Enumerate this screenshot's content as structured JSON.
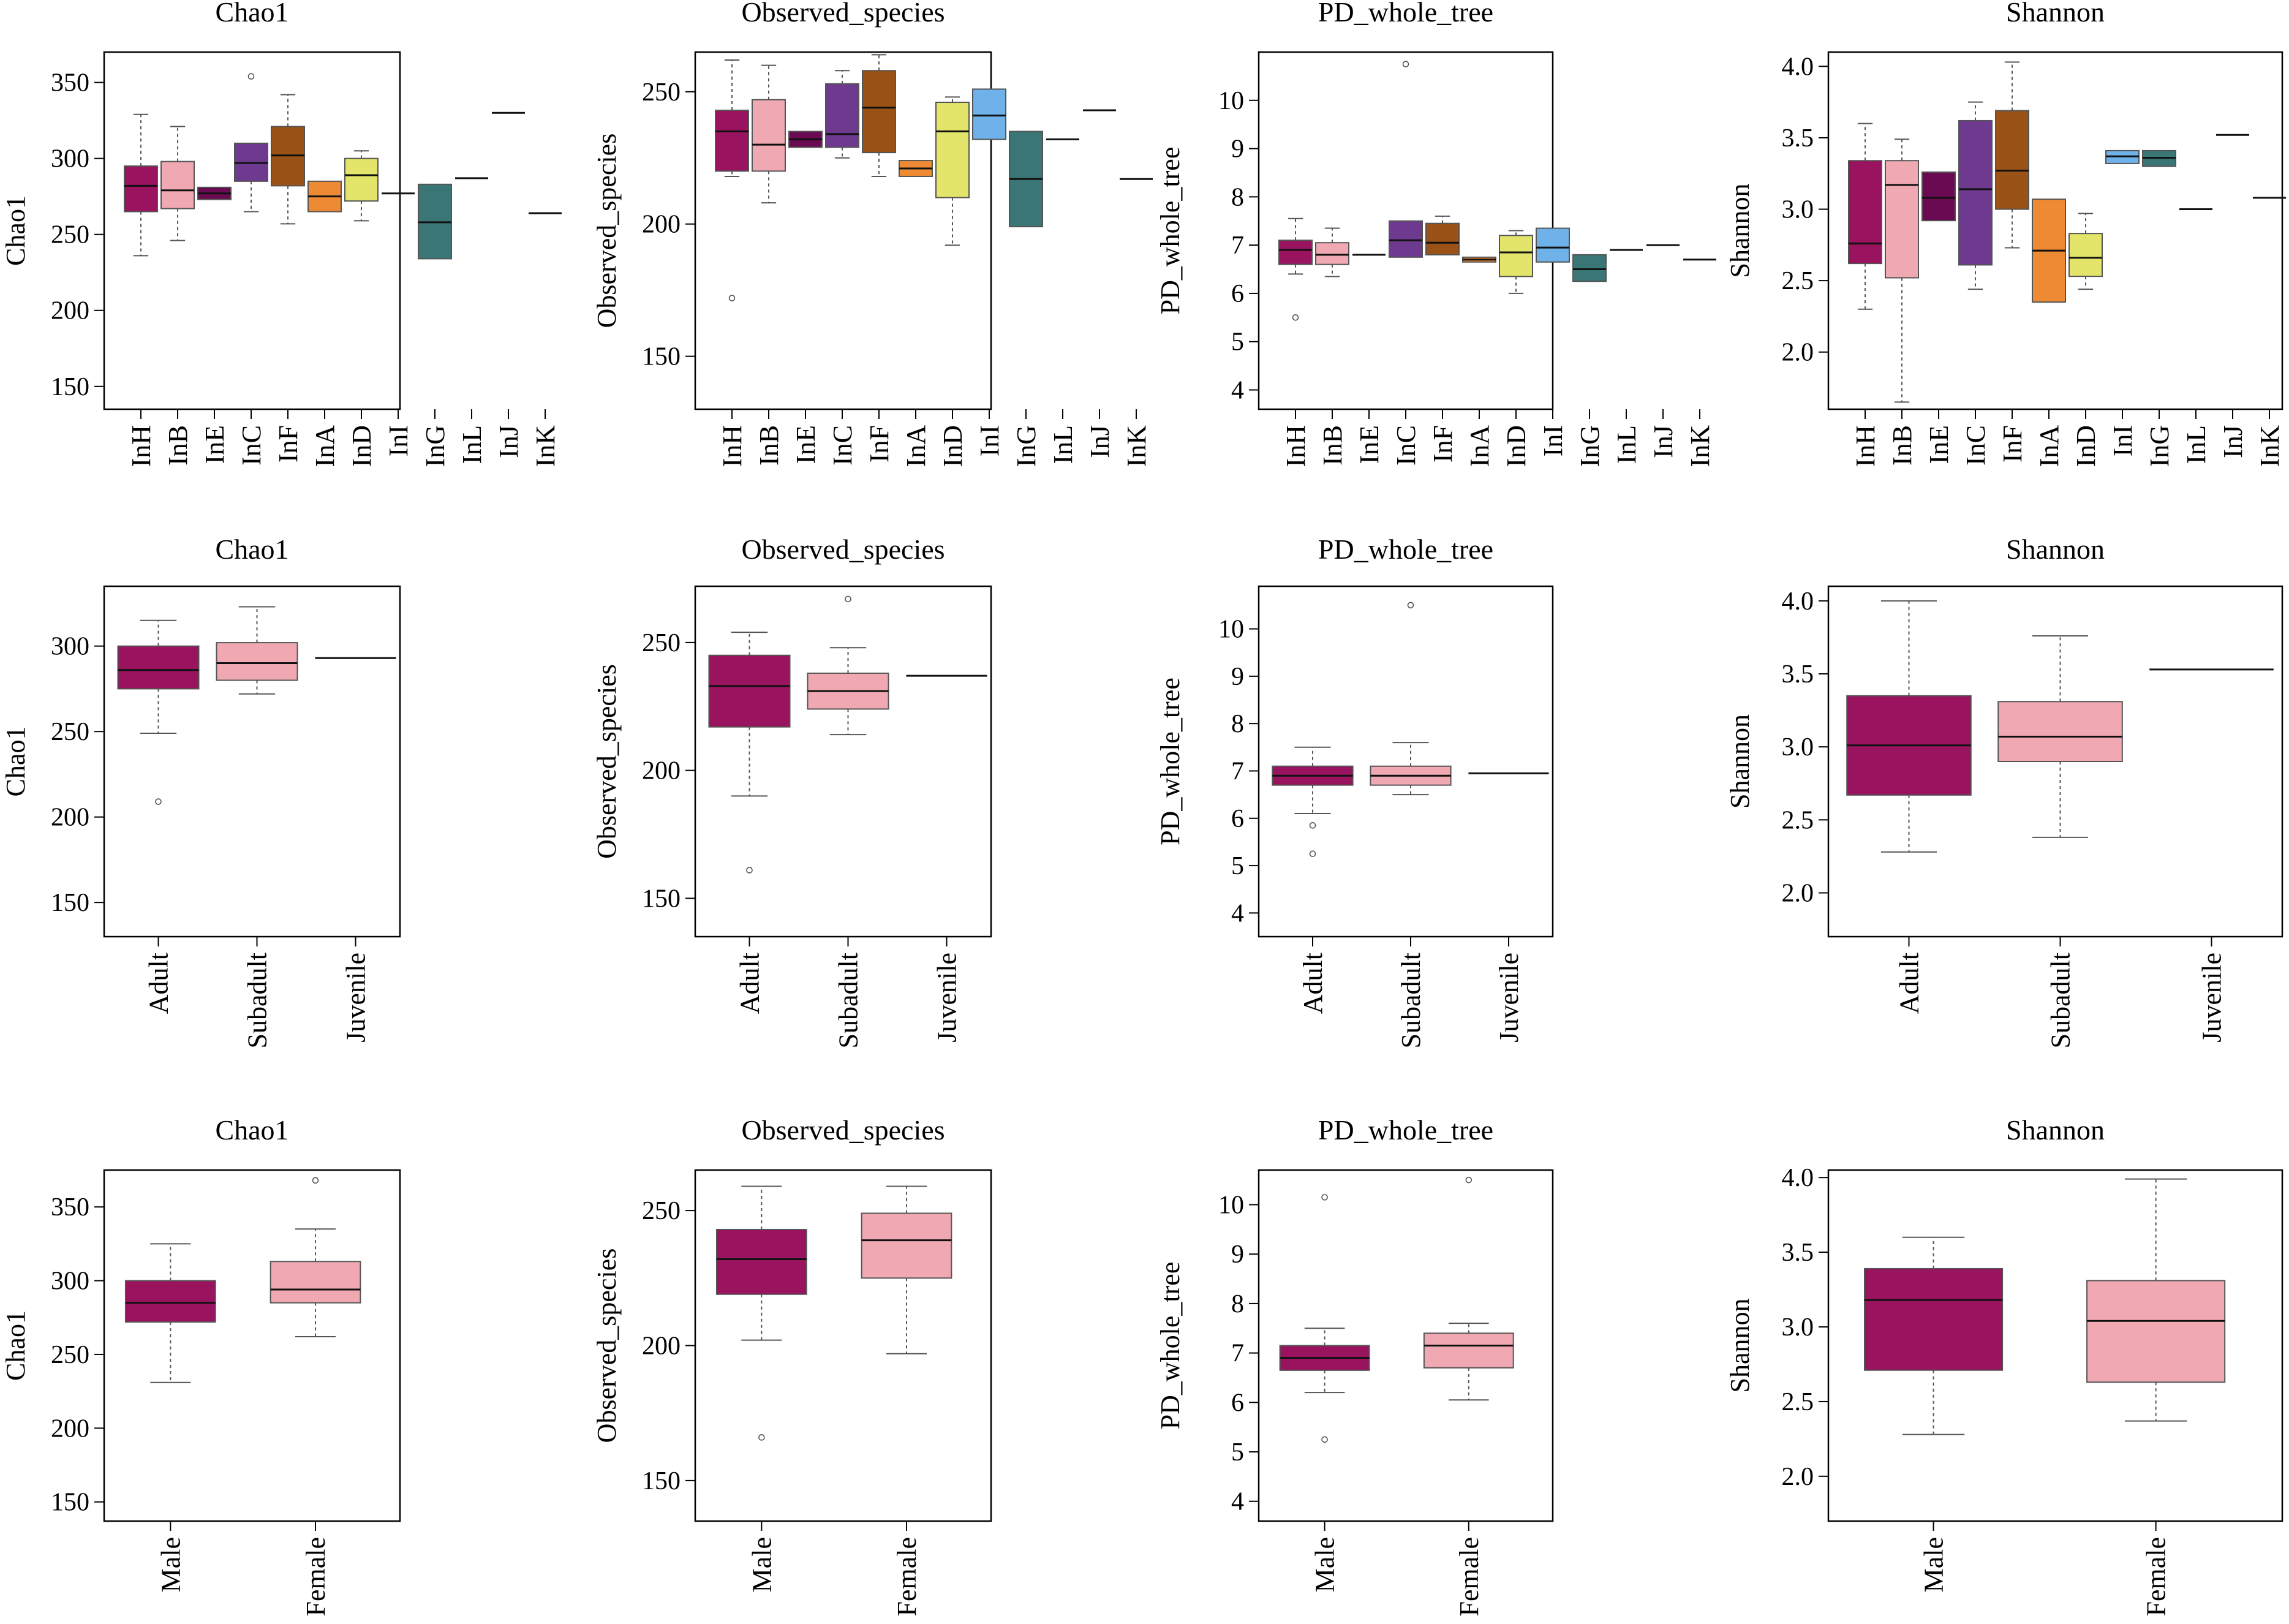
{
  "colors": {
    "InH": "#99135f",
    "InB": "#f0a8b2",
    "InE": "#6a0a52",
    "InC": "#6e3a8f",
    "InF": "#9a5216",
    "InA": "#ee8a33",
    "InD": "#e3e56a",
    "InI": "#6fb2ea",
    "InG": "#3a7676",
    "InL": "#3a7676",
    "InJ": "#3a7676",
    "InK": "#3a7676",
    "Adult": "#99135f",
    "Subadult": "#f0a8b2",
    "Juvenile": "#99135f",
    "Male": "#99135f",
    "Female": "#f0a8b2"
  },
  "chart_data": [
    {
      "type": "box",
      "title": "Chao1",
      "ylabel": "Chao1",
      "ylim": [
        135,
        370
      ],
      "yticks": [
        150,
        200,
        250,
        300,
        350
      ],
      "categories": [
        "InH",
        "InB",
        "InE",
        "InC",
        "InF",
        "InA",
        "InD",
        "InI",
        "InG",
        "InL",
        "InJ",
        "InK"
      ],
      "boxes": [
        {
          "min": 236,
          "q1": 265,
          "median": 282,
          "q3": 295,
          "max": 329,
          "outliers": []
        },
        {
          "min": 246,
          "q1": 267,
          "median": 279,
          "q3": 298,
          "max": 321,
          "outliers": []
        },
        {
          "min": 273,
          "q1": 273,
          "median": 277,
          "q3": 281,
          "max": 281,
          "outliers": []
        },
        {
          "min": 265,
          "q1": 285,
          "median": 297,
          "q3": 310,
          "max": 310,
          "outliers": [
            354
          ]
        },
        {
          "min": 257,
          "q1": 282,
          "median": 302,
          "q3": 321,
          "max": 342,
          "outliers": []
        },
        {
          "min": 265,
          "q1": 265,
          "median": 275,
          "q3": 285,
          "max": 285,
          "outliers": []
        },
        {
          "min": 259,
          "q1": 272,
          "median": 289,
          "q3": 300,
          "max": 305,
          "outliers": []
        },
        {
          "min": 277,
          "q1": 277,
          "median": 277,
          "q3": 277,
          "max": 277,
          "outliers": []
        },
        {
          "min": 234,
          "q1": 234,
          "median": 258,
          "q3": 283,
          "max": 283,
          "outliers": []
        },
        {
          "min": 287,
          "q1": 287,
          "median": 287,
          "q3": 287,
          "max": 287,
          "outliers": []
        },
        {
          "min": 330,
          "q1": 330,
          "median": 330,
          "q3": 330,
          "max": 330,
          "outliers": []
        },
        {
          "min": 264,
          "q1": 264,
          "median": 264,
          "q3": 264,
          "max": 264,
          "outliers": []
        }
      ]
    },
    {
      "type": "box",
      "title": "Observed_species",
      "ylabel": "Observed_species",
      "ylim": [
        130,
        265
      ],
      "yticks": [
        150,
        200,
        250
      ],
      "categories": [
        "InH",
        "InB",
        "InE",
        "InC",
        "InF",
        "InA",
        "InD",
        "InI",
        "InG",
        "InL",
        "InJ",
        "InK"
      ],
      "boxes": [
        {
          "min": 218,
          "q1": 220,
          "median": 235,
          "q3": 243,
          "max": 262,
          "outliers": [
            172
          ]
        },
        {
          "min": 208,
          "q1": 220,
          "median": 230,
          "q3": 247,
          "max": 260,
          "outliers": []
        },
        {
          "min": 229,
          "q1": 229,
          "median": 232,
          "q3": 235,
          "max": 235,
          "outliers": []
        },
        {
          "min": 225,
          "q1": 229,
          "median": 234,
          "q3": 253,
          "max": 258,
          "outliers": []
        },
        {
          "min": 218,
          "q1": 227,
          "median": 244,
          "q3": 258,
          "max": 264,
          "outliers": []
        },
        {
          "min": 218,
          "q1": 218,
          "median": 221,
          "q3": 224,
          "max": 224,
          "outliers": []
        },
        {
          "min": 192,
          "q1": 210,
          "median": 235,
          "q3": 246,
          "max": 248,
          "outliers": []
        },
        {
          "min": 232,
          "q1": 232,
          "median": 241,
          "q3": 251,
          "max": 251,
          "outliers": []
        },
        {
          "min": 199,
          "q1": 199,
          "median": 217,
          "q3": 235,
          "max": 235,
          "outliers": []
        },
        {
          "min": 232,
          "q1": 232,
          "median": 232,
          "q3": 232,
          "max": 232,
          "outliers": []
        },
        {
          "min": 243,
          "q1": 243,
          "median": 243,
          "q3": 243,
          "max": 243,
          "outliers": []
        },
        {
          "min": 217,
          "q1": 217,
          "median": 217,
          "q3": 217,
          "max": 217,
          "outliers": []
        }
      ]
    },
    {
      "type": "box",
      "title": "PD_whole_tree",
      "ylabel": "PD_whole_tree",
      "ylim": [
        3.6,
        11.0
      ],
      "yticks": [
        4,
        5,
        6,
        7,
        8,
        9,
        10
      ],
      "categories": [
        "InH",
        "InB",
        "InE",
        "InC",
        "InF",
        "InA",
        "InD",
        "InI",
        "InG",
        "InL",
        "InJ",
        "InK"
      ],
      "boxes": [
        {
          "min": 6.4,
          "q1": 6.6,
          "median": 6.9,
          "q3": 7.1,
          "max": 7.55,
          "outliers": [
            5.5
          ]
        },
        {
          "min": 6.35,
          "q1": 6.6,
          "median": 6.8,
          "q3": 7.05,
          "max": 7.35,
          "outliers": []
        },
        {
          "min": 6.8,
          "q1": 6.8,
          "median": 6.8,
          "q3": 6.8,
          "max": 6.8,
          "outliers": []
        },
        {
          "min": 6.75,
          "q1": 6.75,
          "median": 7.1,
          "q3": 7.5,
          "max": 7.5,
          "outliers": [
            10.75
          ]
        },
        {
          "min": 6.8,
          "q1": 6.8,
          "median": 7.05,
          "q3": 7.45,
          "max": 7.6,
          "outliers": []
        },
        {
          "min": 6.65,
          "q1": 6.65,
          "median": 6.7,
          "q3": 6.75,
          "max": 6.75,
          "outliers": []
        },
        {
          "min": 6.0,
          "q1": 6.35,
          "median": 6.85,
          "q3": 7.2,
          "max": 7.3,
          "outliers": []
        },
        {
          "min": 6.65,
          "q1": 6.65,
          "median": 6.95,
          "q3": 7.35,
          "max": 7.35,
          "outliers": []
        },
        {
          "min": 6.25,
          "q1": 6.25,
          "median": 6.5,
          "q3": 6.8,
          "max": 6.8,
          "outliers": []
        },
        {
          "min": 6.9,
          "q1": 6.9,
          "median": 6.9,
          "q3": 6.9,
          "max": 6.9,
          "outliers": []
        },
        {
          "min": 7.0,
          "q1": 7.0,
          "median": 7.0,
          "q3": 7.0,
          "max": 7.0,
          "outliers": []
        },
        {
          "min": 6.7,
          "q1": 6.7,
          "median": 6.7,
          "q3": 6.7,
          "max": 6.7,
          "outliers": []
        }
      ]
    },
    {
      "type": "box",
      "title": "Shannon",
      "ylabel": "Shannon",
      "ylim": [
        1.6,
        4.1
      ],
      "yticks": [
        2.0,
        2.5,
        3.0,
        3.5,
        4.0
      ],
      "categories": [
        "InH",
        "InB",
        "InE",
        "InC",
        "InF",
        "InA",
        "InD",
        "InI",
        "InG",
        "InL",
        "InJ",
        "InK"
      ],
      "boxes": [
        {
          "min": 2.3,
          "q1": 2.62,
          "median": 2.76,
          "q3": 3.34,
          "max": 3.6,
          "outliers": []
        },
        {
          "min": 1.65,
          "q1": 2.52,
          "median": 3.17,
          "q3": 3.34,
          "max": 3.49,
          "outliers": []
        },
        {
          "min": 2.92,
          "q1": 2.92,
          "median": 3.08,
          "q3": 3.26,
          "max": 3.26,
          "outliers": []
        },
        {
          "min": 2.44,
          "q1": 2.61,
          "median": 3.14,
          "q3": 3.62,
          "max": 3.75,
          "outliers": []
        },
        {
          "min": 2.73,
          "q1": 3.0,
          "median": 3.27,
          "q3": 3.69,
          "max": 4.03,
          "outliers": []
        },
        {
          "min": 2.35,
          "q1": 2.35,
          "median": 2.71,
          "q3": 3.07,
          "max": 3.07,
          "outliers": []
        },
        {
          "min": 2.44,
          "q1": 2.53,
          "median": 2.66,
          "q3": 2.83,
          "max": 2.97,
          "outliers": []
        },
        {
          "min": 3.32,
          "q1": 3.32,
          "median": 3.37,
          "q3": 3.41,
          "max": 3.41,
          "outliers": []
        },
        {
          "min": 3.3,
          "q1": 3.3,
          "median": 3.36,
          "q3": 3.41,
          "max": 3.41,
          "outliers": []
        },
        {
          "min": 3.0,
          "q1": 3.0,
          "median": 3.0,
          "q3": 3.0,
          "max": 3.0,
          "outliers": []
        },
        {
          "min": 3.52,
          "q1": 3.52,
          "median": 3.52,
          "q3": 3.52,
          "max": 3.52,
          "outliers": []
        },
        {
          "min": 3.08,
          "q1": 3.08,
          "median": 3.08,
          "q3": 3.08,
          "max": 3.08,
          "outliers": []
        }
      ]
    },
    {
      "type": "box",
      "title": "Chao1",
      "ylabel": "Chao1",
      "ylim": [
        130,
        335
      ],
      "yticks": [
        150,
        200,
        250,
        300
      ],
      "categories": [
        "Adult",
        "Subadult",
        "Juvenile"
      ],
      "boxes": [
        {
          "min": 249,
          "q1": 275,
          "median": 286,
          "q3": 300,
          "max": 315,
          "outliers": [
            209
          ]
        },
        {
          "min": 272,
          "q1": 280,
          "median": 290,
          "q3": 302,
          "max": 323,
          "outliers": []
        },
        {
          "min": 293,
          "q1": 293,
          "median": 293,
          "q3": 293,
          "max": 293,
          "outliers": []
        }
      ]
    },
    {
      "type": "box",
      "title": "Observed_species",
      "ylabel": "Observed_species",
      "ylim": [
        135,
        272
      ],
      "yticks": [
        150,
        200,
        250
      ],
      "categories": [
        "Adult",
        "Subadult",
        "Juvenile"
      ],
      "boxes": [
        {
          "min": 190,
          "q1": 217,
          "median": 233,
          "q3": 245,
          "max": 254,
          "outliers": [
            161
          ]
        },
        {
          "min": 214,
          "q1": 224,
          "median": 231,
          "q3": 238,
          "max": 248,
          "outliers": [
            267
          ]
        },
        {
          "min": 237,
          "q1": 237,
          "median": 237,
          "q3": 237,
          "max": 237,
          "outliers": []
        }
      ]
    },
    {
      "type": "box",
      "title": "PD_whole_tree",
      "ylabel": "PD_whole_tree",
      "ylim": [
        3.5,
        10.9
      ],
      "yticks": [
        4,
        5,
        6,
        7,
        8,
        9,
        10
      ],
      "categories": [
        "Adult",
        "Subadult",
        "Juvenile"
      ],
      "boxes": [
        {
          "min": 6.1,
          "q1": 6.7,
          "median": 6.9,
          "q3": 7.1,
          "max": 7.5,
          "outliers": [
            5.85,
            5.25
          ]
        },
        {
          "min": 6.5,
          "q1": 6.7,
          "median": 6.9,
          "q3": 7.1,
          "max": 7.6,
          "outliers": [
            10.5
          ]
        },
        {
          "min": 6.95,
          "q1": 6.95,
          "median": 6.95,
          "q3": 6.95,
          "max": 6.95,
          "outliers": []
        }
      ]
    },
    {
      "type": "box",
      "title": "Shannon",
      "ylabel": "Shannon",
      "ylim": [
        1.7,
        4.1
      ],
      "yticks": [
        2.0,
        2.5,
        3.0,
        3.5,
        4.0
      ],
      "categories": [
        "Adult",
        "Subadult",
        "Juvenile"
      ],
      "boxes": [
        {
          "min": 2.28,
          "q1": 2.67,
          "median": 3.01,
          "q3": 3.35,
          "max": 4.0,
          "outliers": []
        },
        {
          "min": 2.38,
          "q1": 2.9,
          "median": 3.07,
          "q3": 3.31,
          "max": 3.76,
          "outliers": []
        },
        {
          "min": 3.53,
          "q1": 3.53,
          "median": 3.53,
          "q3": 3.53,
          "max": 3.53,
          "outliers": []
        }
      ]
    },
    {
      "type": "box",
      "title": "Chao1",
      "ylabel": "Chao1",
      "ylim": [
        137,
        375
      ],
      "yticks": [
        150,
        200,
        250,
        300,
        350
      ],
      "categories": [
        "Male",
        "Female"
      ],
      "boxes": [
        {
          "min": 231,
          "q1": 272,
          "median": 285,
          "q3": 300,
          "max": 325,
          "outliers": []
        },
        {
          "min": 262,
          "q1": 285,
          "median": 294,
          "q3": 313,
          "max": 335,
          "outliers": [
            368
          ]
        }
      ]
    },
    {
      "type": "box",
      "title": "Observed_species",
      "ylabel": "Observed_species",
      "ylim": [
        135,
        265
      ],
      "yticks": [
        150,
        200,
        250
      ],
      "categories": [
        "Male",
        "Female"
      ],
      "boxes": [
        {
          "min": 202,
          "q1": 219,
          "median": 232,
          "q3": 243,
          "max": 259,
          "outliers": [
            166
          ]
        },
        {
          "min": 197,
          "q1": 225,
          "median": 239,
          "q3": 249,
          "max": 259,
          "outliers": []
        }
      ]
    },
    {
      "type": "box",
      "title": "PD_whole_tree",
      "ylabel": "PD_whole_tree",
      "ylim": [
        3.6,
        10.7
      ],
      "yticks": [
        4,
        5,
        6,
        7,
        8,
        9,
        10
      ],
      "categories": [
        "Male",
        "Female"
      ],
      "boxes": [
        {
          "min": 6.2,
          "q1": 6.65,
          "median": 6.9,
          "q3": 7.15,
          "max": 7.5,
          "outliers": [
            10.15,
            5.25
          ]
        },
        {
          "min": 6.05,
          "q1": 6.7,
          "median": 7.15,
          "q3": 7.4,
          "max": 7.6,
          "outliers": [
            10.5
          ]
        }
      ]
    },
    {
      "type": "box",
      "title": "Shannon",
      "ylabel": "Shannon",
      "ylim": [
        1.7,
        4.05
      ],
      "yticks": [
        2.0,
        2.5,
        3.0,
        3.5,
        4.0
      ],
      "categories": [
        "Male",
        "Female"
      ],
      "boxes": [
        {
          "min": 2.28,
          "q1": 2.71,
          "median": 3.18,
          "q3": 3.39,
          "max": 3.6,
          "outliers": []
        },
        {
          "min": 2.37,
          "q1": 2.63,
          "median": 3.04,
          "q3": 3.31,
          "max": 3.99,
          "outliers": []
        }
      ]
    }
  ]
}
